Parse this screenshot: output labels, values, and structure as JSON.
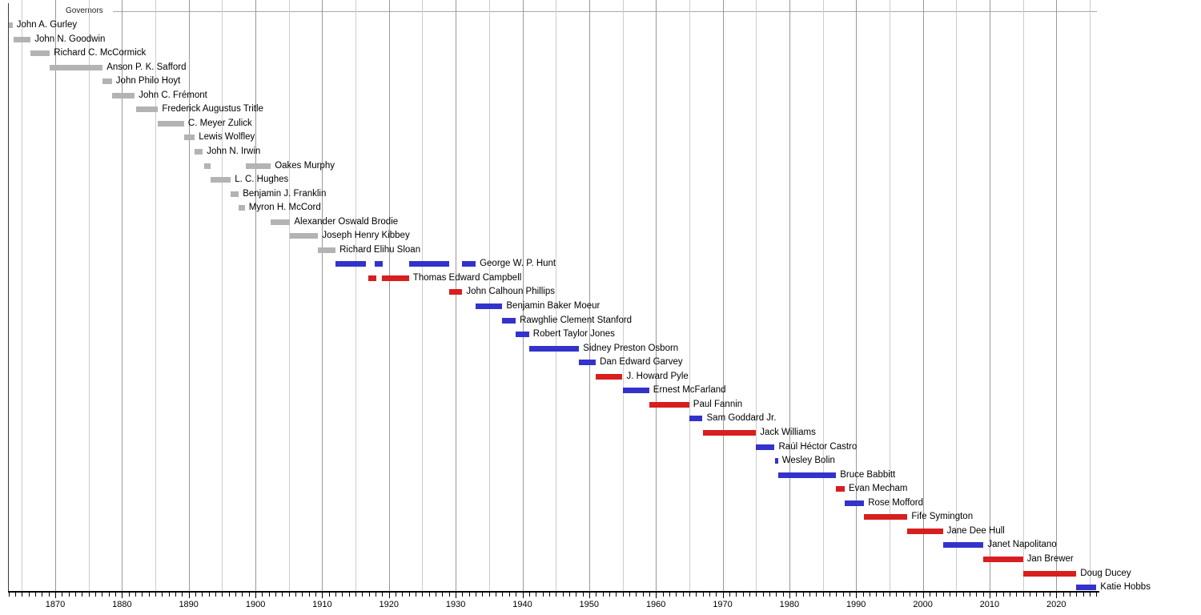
{
  "chart_data": {
    "type": "bar",
    "variant": "gantt-timeline",
    "title": "Governors",
    "x_axis": {
      "min_year": 1863,
      "max_year": 2026,
      "minor_tick_interval": 1,
      "gridline_interval": 5,
      "labeled_ticks": [
        "1870",
        "1880",
        "1890",
        "1900",
        "1910",
        "1920",
        "1930",
        "1940",
        "1950",
        "1960",
        "1970",
        "1980",
        "1990",
        "2000",
        "2010",
        "2020"
      ]
    },
    "colors": {
      "territorial": "#b3b3b3",
      "democratic": "#3333cc",
      "republican": "#d81e1e",
      "gridline_decade": "#999999",
      "gridline_minor": "#cccccc",
      "axis": "#000000",
      "title_rule": "#aaaaaa"
    },
    "governors": [
      {
        "name": "John A. Gurley",
        "party": "territorial",
        "terms": [
          [
            1863.0,
            1863.6
          ]
        ]
      },
      {
        "name": "John N. Goodwin",
        "party": "territorial",
        "terms": [
          [
            1863.8,
            1866.3
          ]
        ]
      },
      {
        "name": "Richard C. McCormick",
        "party": "territorial",
        "terms": [
          [
            1866.3,
            1869.2
          ]
        ]
      },
      {
        "name": "Anson P. K. Safford",
        "party": "territorial",
        "terms": [
          [
            1869.2,
            1877.1
          ]
        ]
      },
      {
        "name": "John Philo Hoyt",
        "party": "territorial",
        "terms": [
          [
            1877.1,
            1878.5
          ]
        ]
      },
      {
        "name": "John C. Frémont",
        "party": "territorial",
        "terms": [
          [
            1878.5,
            1881.9
          ]
        ]
      },
      {
        "name": "Frederick Augustus Tritle",
        "party": "territorial",
        "terms": [
          [
            1882.1,
            1885.4
          ]
        ]
      },
      {
        "name": "C. Meyer Zulick",
        "party": "territorial",
        "terms": [
          [
            1885.4,
            1889.3
          ]
        ]
      },
      {
        "name": "Lewis Wolfley",
        "party": "territorial",
        "terms": [
          [
            1889.3,
            1890.9
          ]
        ]
      },
      {
        "name": "John N. Irwin",
        "party": "territorial",
        "terms": [
          [
            1890.9,
            1892.1
          ]
        ]
      },
      {
        "name": "Oakes Murphy",
        "party": "territorial",
        "terms": [
          [
            1892.3,
            1893.3
          ],
          [
            1898.5,
            1902.3
          ]
        ]
      },
      {
        "name": "L. C. Hughes",
        "party": "territorial",
        "terms": [
          [
            1893.3,
            1896.3
          ]
        ]
      },
      {
        "name": "Benjamin J. Franklin",
        "party": "territorial",
        "terms": [
          [
            1896.3,
            1897.5
          ]
        ]
      },
      {
        "name": "Myron H. McCord",
        "party": "territorial",
        "terms": [
          [
            1897.5,
            1898.4
          ]
        ]
      },
      {
        "name": "Alexander Oswald Brodie",
        "party": "territorial",
        "terms": [
          [
            1902.3,
            1905.2
          ]
        ]
      },
      {
        "name": "Joseph Henry Kibbey",
        "party": "territorial",
        "terms": [
          [
            1905.2,
            1909.4
          ]
        ]
      },
      {
        "name": "Richard Elihu Sloan",
        "party": "territorial",
        "terms": [
          [
            1909.4,
            1912.0
          ]
        ]
      },
      {
        "name": "George W. P. Hunt",
        "party": "democratic",
        "terms": [
          [
            1912.0,
            1916.6
          ],
          [
            1917.9,
            1919.1
          ],
          [
            1923.0,
            1929.0
          ],
          [
            1931.0,
            1933.0
          ]
        ]
      },
      {
        "name": "Thomas Edward Campbell",
        "party": "republican",
        "terms": [
          [
            1916.9,
            1918.1
          ],
          [
            1919.0,
            1923.0
          ]
        ]
      },
      {
        "name": "John Calhoun Phillips",
        "party": "republican",
        "terms": [
          [
            1929.0,
            1931.0
          ]
        ]
      },
      {
        "name": "Benjamin Baker Moeur",
        "party": "democratic",
        "terms": [
          [
            1933.0,
            1937.0
          ]
        ]
      },
      {
        "name": "Rawghlie Clement Stanford",
        "party": "democratic",
        "terms": [
          [
            1937.0,
            1939.0
          ]
        ]
      },
      {
        "name": "Robert Taylor Jones",
        "party": "democratic",
        "terms": [
          [
            1939.0,
            1941.0
          ]
        ]
      },
      {
        "name": "Sidney Preston Osborn",
        "party": "democratic",
        "terms": [
          [
            1941.0,
            1948.5
          ]
        ]
      },
      {
        "name": "Dan Edward Garvey",
        "party": "democratic",
        "terms": [
          [
            1948.5,
            1951.0
          ]
        ]
      },
      {
        "name": "J. Howard Pyle",
        "party": "republican",
        "terms": [
          [
            1951.0,
            1955.0
          ]
        ]
      },
      {
        "name": "Ernest McFarland",
        "party": "democratic",
        "terms": [
          [
            1955.0,
            1959.0
          ]
        ]
      },
      {
        "name": "Paul Fannin",
        "party": "republican",
        "terms": [
          [
            1959.0,
            1965.0
          ]
        ]
      },
      {
        "name": "Sam Goddard Jr.",
        "party": "democratic",
        "terms": [
          [
            1965.0,
            1967.0
          ]
        ]
      },
      {
        "name": "Jack Williams",
        "party": "republican",
        "terms": [
          [
            1967.0,
            1975.0
          ]
        ]
      },
      {
        "name": "Raúl Héctor Castro",
        "party": "democratic",
        "terms": [
          [
            1975.0,
            1977.8
          ]
        ]
      },
      {
        "name": "Wesley Bolin",
        "party": "democratic",
        "terms": [
          [
            1977.8,
            1978.3
          ]
        ]
      },
      {
        "name": "Bruce Babbitt",
        "party": "democratic",
        "terms": [
          [
            1978.3,
            1987.0
          ]
        ]
      },
      {
        "name": "Evan Mecham",
        "party": "republican",
        "terms": [
          [
            1987.0,
            1988.3
          ]
        ]
      },
      {
        "name": "Rose Mofford",
        "party": "democratic",
        "terms": [
          [
            1988.3,
            1991.2
          ]
        ]
      },
      {
        "name": "Fife Symington",
        "party": "republican",
        "terms": [
          [
            1991.2,
            1997.7
          ]
        ]
      },
      {
        "name": "Jane Dee Hull",
        "party": "republican",
        "terms": [
          [
            1997.7,
            2003.0
          ]
        ]
      },
      {
        "name": "Janet Napolitano",
        "party": "democratic",
        "terms": [
          [
            2003.0,
            2009.1
          ]
        ]
      },
      {
        "name": "Jan Brewer",
        "party": "republican",
        "terms": [
          [
            2009.1,
            2015.0
          ]
        ]
      },
      {
        "name": "Doug Ducey",
        "party": "republican",
        "terms": [
          [
            2015.0,
            2023.0
          ]
        ]
      },
      {
        "name": "Katie Hobbs",
        "party": "democratic",
        "terms": [
          [
            2023.0,
            2026.0
          ]
        ]
      }
    ]
  }
}
